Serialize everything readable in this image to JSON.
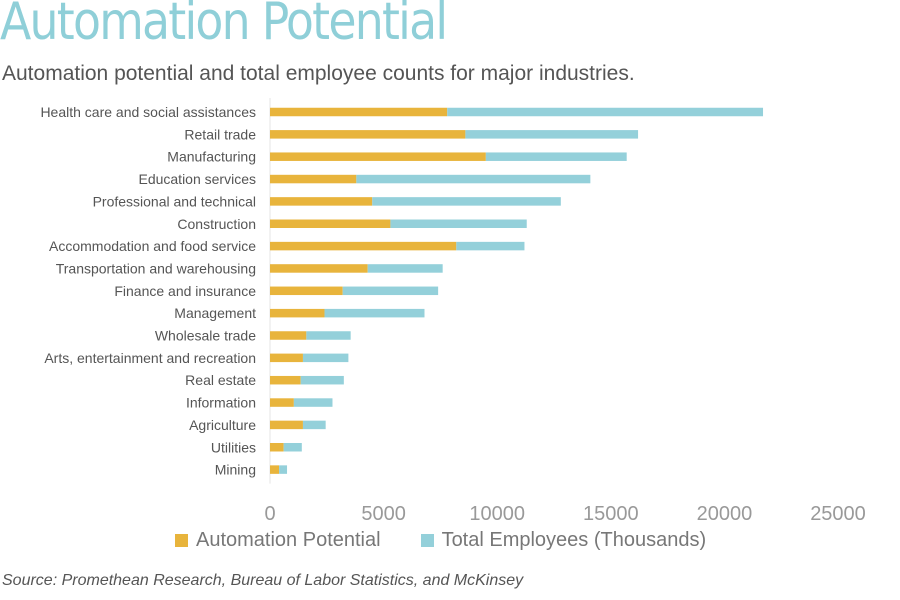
{
  "title": "Automation Potential",
  "subtitle": "Automation potential and total employee counts for major industries.",
  "source": "Source: Promethean Research, Bureau of Labor Statistics, and McKinsey",
  "colors": {
    "title": "#8fcfd8",
    "automation": "#e8b43c",
    "total": "#94d0da",
    "axis_text": "#999999",
    "category_text": "#555555"
  },
  "chart_data": {
    "type": "bar",
    "orientation": "horizontal",
    "stacked": true,
    "categories": [
      "Health care and social assistances",
      "Retail trade",
      "Manufacturing",
      "Education services",
      "Professional and technical",
      "Construction",
      "Accommodation and food service",
      "Transportation and warehousing",
      "Finance and insurance",
      "Management",
      "Wholesale trade",
      "Arts, entertainment and recreation",
      "Real estate",
      "Information",
      "Agriculture",
      "Utilities",
      "Mining"
    ],
    "series": [
      {
        "name": "Automation Potential",
        "color": "#e8b43c",
        "values": [
          7800,
          8600,
          9500,
          3800,
          4500,
          5300,
          8200,
          4300,
          3200,
          2400,
          1600,
          1450,
          1350,
          1050,
          1450,
          600,
          400
        ]
      },
      {
        "name": "Total Employees (Thousands)",
        "color": "#94d0da",
        "values": [
          13900,
          7600,
          6200,
          10300,
          8300,
          6000,
          3000,
          3300,
          4200,
          4400,
          1950,
          2000,
          1900,
          1700,
          1000,
          800,
          350
        ]
      }
    ],
    "xlim": [
      0,
      25000
    ],
    "xticks": [
      "0",
      "5000",
      "10000",
      "15000",
      "20000",
      "25000"
    ],
    "legend_position": "bottom",
    "grid": false
  }
}
